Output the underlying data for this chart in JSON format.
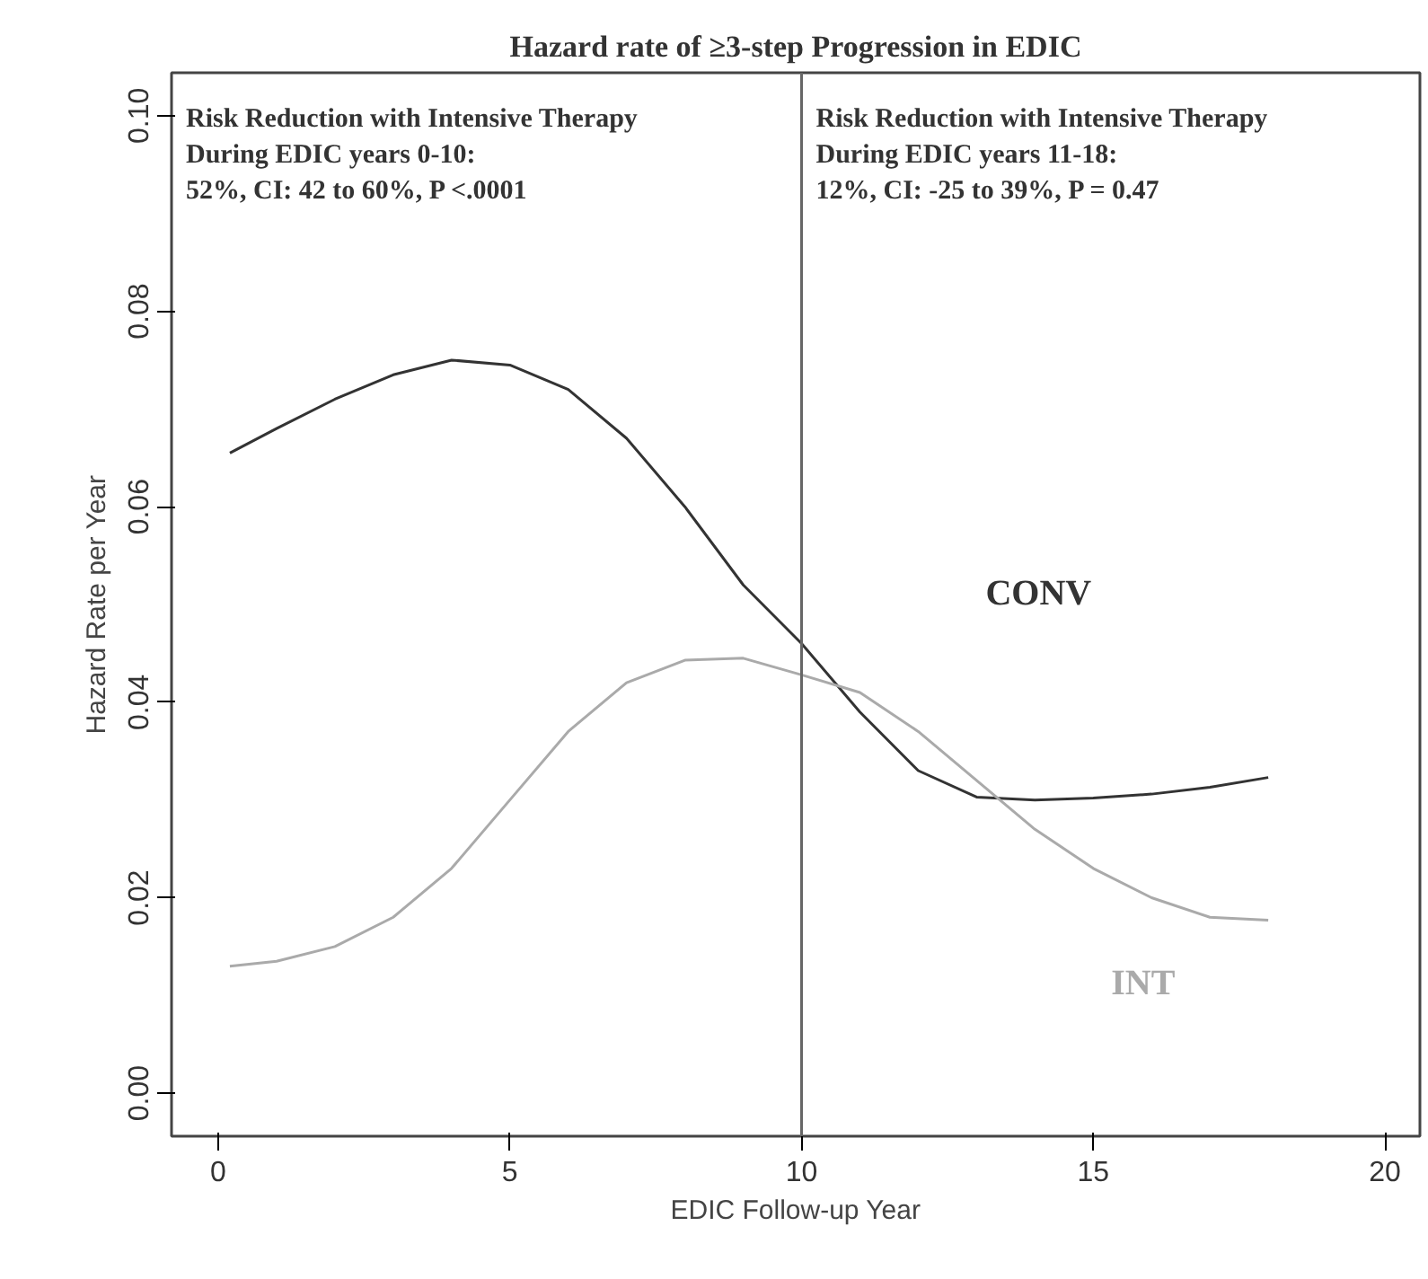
{
  "chart_data": {
    "type": "line",
    "title": "Hazard rate of ≥3-step Progression in EDIC",
    "xlabel": "EDIC Follow-up Year",
    "ylabel": "Hazard Rate per Year",
    "x": [
      0.2,
      1,
      2,
      3,
      4,
      5,
      6,
      7,
      8,
      9,
      10,
      11,
      12,
      13,
      14,
      15,
      16,
      17,
      18
    ],
    "series": [
      {
        "name": "CONV",
        "color": "#333333",
        "values": [
          0.0655,
          0.068,
          0.071,
          0.0735,
          0.075,
          0.0745,
          0.072,
          0.067,
          0.06,
          0.052,
          0.046,
          0.039,
          0.033,
          0.0303,
          0.03,
          0.0302,
          0.0306,
          0.0313,
          0.0323
        ]
      },
      {
        "name": "INT",
        "color": "#aaaaaa",
        "values": [
          0.013,
          0.0135,
          0.015,
          0.018,
          0.023,
          0.03,
          0.037,
          0.042,
          0.0443,
          0.0445,
          0.0428,
          0.041,
          0.037,
          0.032,
          0.027,
          0.023,
          0.02,
          0.018,
          0.0177
        ]
      }
    ],
    "xlim": [
      -0.8,
      20.6
    ],
    "ylim": [
      -0.0044,
      0.1044
    ],
    "xticks": [
      0,
      5,
      10,
      15,
      20
    ],
    "yticks": [
      {
        "value": 0,
        "label": "0.00"
      },
      {
        "value": 0.02,
        "label": "0.02"
      },
      {
        "value": 0.04,
        "label": "0.04"
      },
      {
        "value": 0.06,
        "label": "0.06"
      },
      {
        "value": 0.08,
        "label": "0.08"
      },
      {
        "value": 0.1,
        "label": "0.10"
      }
    ],
    "ref_lines": [
      {
        "axis": "x",
        "value": 10,
        "color": "#666666"
      }
    ],
    "annotations": [
      "Risk Reduction with Intensive Therapy\nDuring EDIC years 0-10:\n52%, CI: 42 to 60%, P <.0001",
      "Risk Reduction with Intensive Therapy\nDuring EDIC years  11-18:\n12%, CI: -25 to 39%, P = 0.47"
    ],
    "grid": false,
    "legend": false,
    "marker": "none",
    "line_style": "solid"
  }
}
